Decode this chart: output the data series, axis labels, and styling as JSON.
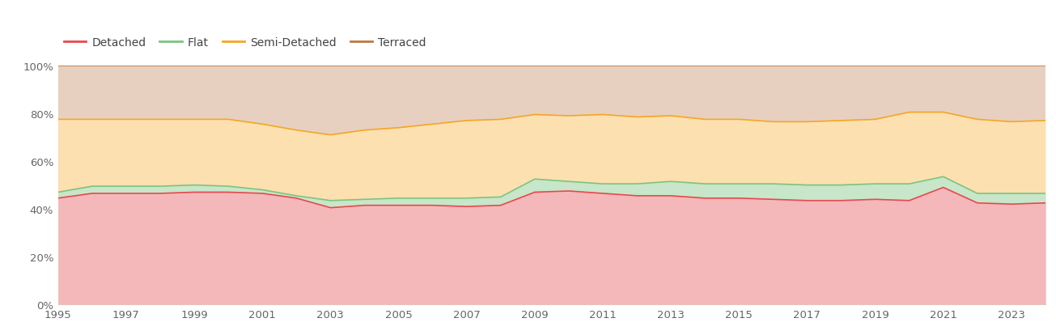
{
  "years": [
    1995,
    1996,
    1997,
    1998,
    1999,
    2000,
    2001,
    2002,
    2003,
    2004,
    2005,
    2006,
    2007,
    2008,
    2009,
    2010,
    2011,
    2012,
    2013,
    2014,
    2015,
    2016,
    2017,
    2018,
    2019,
    2020,
    2021,
    2022,
    2023,
    2024
  ],
  "detached": [
    44.5,
    46.5,
    46.5,
    46.5,
    47.0,
    47.0,
    46.5,
    44.5,
    40.5,
    41.5,
    41.5,
    41.5,
    41.0,
    41.5,
    47.0,
    47.5,
    46.5,
    45.5,
    45.5,
    44.5,
    44.5,
    44.0,
    43.5,
    43.5,
    44.0,
    43.5,
    49.0,
    42.5,
    42.0,
    42.5
  ],
  "flat": [
    47.0,
    49.5,
    49.5,
    49.5,
    50.0,
    49.5,
    48.0,
    45.5,
    43.5,
    44.0,
    44.5,
    44.5,
    44.5,
    45.0,
    52.5,
    51.5,
    50.5,
    50.5,
    51.5,
    50.5,
    50.5,
    50.5,
    50.0,
    50.0,
    50.5,
    50.5,
    53.5,
    46.5,
    46.5,
    46.5
  ],
  "semi_detached": [
    77.5,
    77.5,
    77.5,
    77.5,
    77.5,
    77.5,
    75.5,
    73.0,
    71.0,
    73.0,
    74.0,
    75.5,
    77.0,
    77.5,
    79.5,
    79.0,
    79.5,
    78.5,
    79.0,
    77.5,
    77.5,
    76.5,
    76.5,
    77.0,
    77.5,
    80.5,
    80.5,
    77.5,
    76.5,
    77.0
  ],
  "terraced": [
    100,
    100,
    100,
    100,
    100,
    100,
    100,
    100,
    100,
    100,
    100,
    100,
    100,
    100,
    100,
    100,
    100,
    100,
    100,
    100,
    100,
    100,
    100,
    100,
    100,
    100,
    100,
    100,
    100,
    100
  ],
  "colors": {
    "detached_line": "#e8474c",
    "detached_fill": "#f5b8ba",
    "flat_line": "#7bc47f",
    "flat_fill": "#c8e6c9",
    "semi_line": "#f5a623",
    "semi_fill": "#fde0b0",
    "terraced_line": "#c07840",
    "terraced_fill": "#e8d0c0"
  },
  "legend_labels": [
    "Detached",
    "Flat",
    "Semi-Detached",
    "Terraced"
  ],
  "yticks": [
    0,
    20,
    40,
    60,
    80,
    100
  ],
  "ytick_labels": [
    "0%",
    "20%",
    "40%",
    "60%",
    "80%",
    "100%"
  ],
  "xtick_years": [
    1995,
    1997,
    1999,
    2001,
    2003,
    2005,
    2007,
    2009,
    2011,
    2013,
    2015,
    2017,
    2019,
    2021,
    2023
  ]
}
